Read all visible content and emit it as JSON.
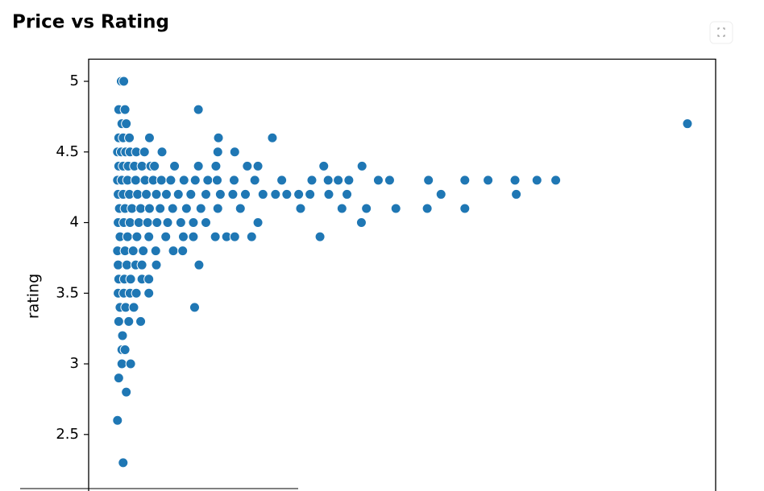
{
  "chart_data": {
    "type": "scatter",
    "title": "Price vs Rating",
    "y_label": "rating",
    "color": "#1f77b4",
    "xlim": [
      0,
      100
    ],
    "ylim": [
      2.1,
      5.15
    ],
    "yticks": [
      2.5,
      3.0,
      3.5,
      4.0,
      4.5,
      5.0
    ],
    "x": [
      5.2,
      5.6,
      4.8,
      5.8,
      17.5,
      5.3,
      6.0,
      95.5,
      4.8,
      5.5,
      6.5,
      9.7,
      20.7,
      29.3,
      4.6,
      5.2,
      5.9,
      6.6,
      7.6,
      8.9,
      11.7,
      20.6,
      23.3,
      4.8,
      5.5,
      6.3,
      7.3,
      8.5,
      9.9,
      10.5,
      13.7,
      17.5,
      20.3,
      25.3,
      27.0,
      37.5,
      43.6,
      4.6,
      5.3,
      6.2,
      7.5,
      9.0,
      10.3,
      11.6,
      13.1,
      15.2,
      17.0,
      19.0,
      20.5,
      23.2,
      26.5,
      30.8,
      35.6,
      38.2,
      39.8,
      41.5,
      46.2,
      48.0,
      54.2,
      60.0,
      63.7,
      68.0,
      71.5,
      74.5,
      4.7,
      5.5,
      6.5,
      7.8,
      9.2,
      10.8,
      12.4,
      14.3,
      16.3,
      18.7,
      21.0,
      23.0,
      25.0,
      27.8,
      29.8,
      31.6,
      33.5,
      35.3,
      38.3,
      41.2,
      56.2,
      68.2,
      4.9,
      5.8,
      6.9,
      8.3,
      9.7,
      11.4,
      13.4,
      15.6,
      17.9,
      20.6,
      24.2,
      33.8,
      40.4,
      44.3,
      49.0,
      54.0,
      60.0,
      4.7,
      5.6,
      6.6,
      8.0,
      9.4,
      10.9,
      12.6,
      14.7,
      16.7,
      18.7,
      27.0,
      43.5,
      5.0,
      6.2,
      7.7,
      9.6,
      12.3,
      15.1,
      16.7,
      20.2,
      22.0,
      23.3,
      26.0,
      36.9,
      4.6,
      5.8,
      7.1,
      8.7,
      10.7,
      13.5,
      15.0,
      4.7,
      6.1,
      7.5,
      8.5,
      10.8,
      17.6,
      4.8,
      5.7,
      6.7,
      8.5,
      9.6,
      4.7,
      5.6,
      6.6,
      7.6,
      9.6,
      5.0,
      5.9,
      7.2,
      16.9,
      4.8,
      6.4,
      8.3,
      5.4,
      5.3,
      5.8,
      5.3,
      6.7,
      4.8,
      6.0,
      4.6,
      5.5
    ],
    "values": [
      5.0,
      5.0,
      4.8,
      4.8,
      4.8,
      4.7,
      4.7,
      4.7,
      4.6,
      4.6,
      4.6,
      4.6,
      4.6,
      4.6,
      4.5,
      4.5,
      4.5,
      4.5,
      4.5,
      4.5,
      4.5,
      4.5,
      4.5,
      4.4,
      4.4,
      4.4,
      4.4,
      4.4,
      4.4,
      4.4,
      4.4,
      4.4,
      4.4,
      4.4,
      4.4,
      4.4,
      4.4,
      4.3,
      4.3,
      4.3,
      4.3,
      4.3,
      4.3,
      4.3,
      4.3,
      4.3,
      4.3,
      4.3,
      4.3,
      4.3,
      4.3,
      4.3,
      4.3,
      4.3,
      4.3,
      4.3,
      4.3,
      4.3,
      4.3,
      4.3,
      4.3,
      4.3,
      4.3,
      4.3,
      4.2,
      4.2,
      4.2,
      4.2,
      4.2,
      4.2,
      4.2,
      4.2,
      4.2,
      4.2,
      4.2,
      4.2,
      4.2,
      4.2,
      4.2,
      4.2,
      4.2,
      4.2,
      4.2,
      4.2,
      4.2,
      4.2,
      4.1,
      4.1,
      4.1,
      4.1,
      4.1,
      4.1,
      4.1,
      4.1,
      4.1,
      4.1,
      4.1,
      4.1,
      4.1,
      4.1,
      4.1,
      4.1,
      4.1,
      4.0,
      4.0,
      4.0,
      4.0,
      4.0,
      4.0,
      4.0,
      4.0,
      4.0,
      4.0,
      4.0,
      4.0,
      3.9,
      3.9,
      3.9,
      3.9,
      3.9,
      3.9,
      3.9,
      3.9,
      3.9,
      3.9,
      3.9,
      3.9,
      3.8,
      3.8,
      3.8,
      3.8,
      3.8,
      3.8,
      3.8,
      3.7,
      3.7,
      3.7,
      3.7,
      3.7,
      3.7,
      3.6,
      3.6,
      3.6,
      3.6,
      3.6,
      3.5,
      3.5,
      3.5,
      3.5,
      3.5,
      3.4,
      3.4,
      3.4,
      3.4,
      3.3,
      3.3,
      3.3,
      3.2,
      3.1,
      3.1,
      3.0,
      3.0,
      2.9,
      2.8,
      2.6,
      2.3
    ]
  }
}
